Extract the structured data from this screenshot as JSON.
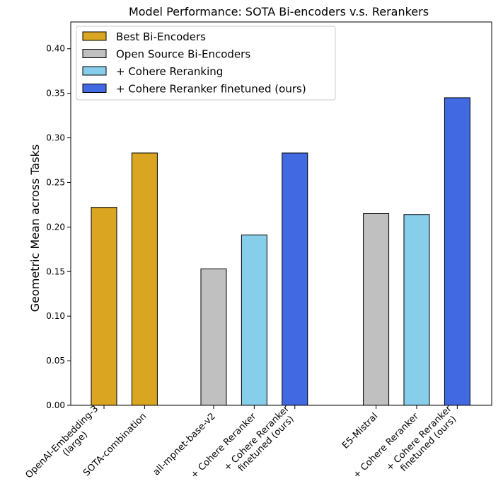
{
  "chart_data": {
    "type": "bar",
    "title": "Model Performance: SOTA Bi-encoders v.s. Rerankers",
    "xlabel": "",
    "ylabel": "Geometric Mean across Tasks",
    "ylim": [
      0,
      0.43
    ],
    "yticks": [
      "0.00",
      "0.05",
      "0.10",
      "0.15",
      "0.20",
      "0.25",
      "0.30",
      "0.35",
      "0.40"
    ],
    "grid": false,
    "legend_position": "top-left",
    "legend": [
      {
        "name": "Best Bi-Encoders",
        "color": "#DAA520"
      },
      {
        "name": "Open Source Bi-Encoders",
        "color": "#C0C0C0"
      },
      {
        "name": "+ Cohere Reranking",
        "color": "#87CEEB"
      },
      {
        "name": "+ Cohere Reranker finetuned (ours)",
        "color": "#4169E1"
      }
    ],
    "bars": [
      {
        "label": [
          "OpenAI-Embedding-3",
          "(large)"
        ],
        "value": 0.222,
        "series": 0
      },
      {
        "label": [
          "SOTA-combination"
        ],
        "value": 0.283,
        "series": 0
      },
      {
        "label": [
          "all-mpnet-base-v2"
        ],
        "value": 0.153,
        "series": 1
      },
      {
        "label": [
          "+ Cohere Reranker"
        ],
        "value": 0.191,
        "series": 2
      },
      {
        "label": [
          "+ Cohere Reranker",
          "finetuned (ours)"
        ],
        "value": 0.283,
        "series": 3
      },
      {
        "label": [
          "E5-Mistral"
        ],
        "value": 0.215,
        "series": 1
      },
      {
        "label": [
          "+ Cohere Reranker"
        ],
        "value": 0.214,
        "series": 2
      },
      {
        "label": [
          "+ Cohere Reranker",
          "finetuned (ours)"
        ],
        "value": 0.345,
        "series": 3
      }
    ]
  }
}
